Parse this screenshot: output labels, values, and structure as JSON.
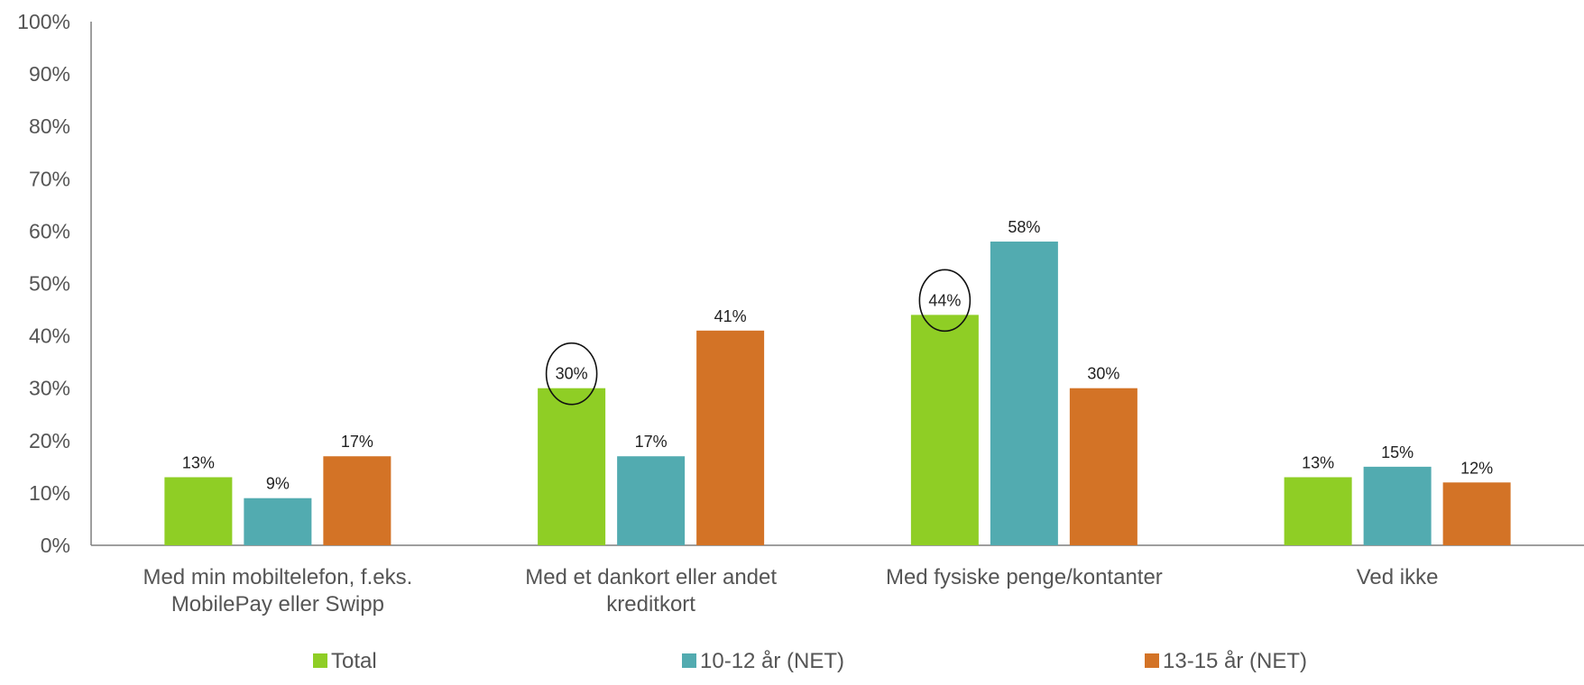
{
  "chart_data": {
    "type": "bar",
    "title": "",
    "xlabel": "",
    "ylabel": "",
    "ylim": [
      0,
      100
    ],
    "yticks": [
      "0%",
      "10%",
      "20%",
      "30%",
      "40%",
      "50%",
      "60%",
      "70%",
      "80%",
      "90%",
      "100%"
    ],
    "grid": false,
    "legend_position": "bottom",
    "categories": [
      [
        "Med min mobiltelefon, f.eks.",
        "MobilePay eller Swipp"
      ],
      [
        "Med et dankort eller andet",
        "kreditkort"
      ],
      [
        "Med fysiske penge/kontanter"
      ],
      [
        "Ved ikke"
      ]
    ],
    "series": [
      {
        "name": "Total",
        "color": "#8fce25",
        "values": [
          13,
          30,
          44,
          13
        ],
        "labels": [
          "13%",
          "30%",
          "44%",
          "13%"
        ],
        "circled": [
          false,
          true,
          true,
          false
        ]
      },
      {
        "name": "10-12 år (NET)",
        "color": "#52abb0",
        "values": [
          9,
          17,
          58,
          15
        ],
        "labels": [
          "9%",
          "17%",
          "58%",
          "15%"
        ],
        "circled": [
          false,
          false,
          false,
          false
        ]
      },
      {
        "name": "13-15 år (NET)",
        "color": "#d37326",
        "values": [
          17,
          41,
          30,
          12
        ],
        "labels": [
          "17%",
          "41%",
          "30%",
          "12%"
        ],
        "circled": [
          false,
          false,
          false,
          false
        ]
      }
    ]
  }
}
